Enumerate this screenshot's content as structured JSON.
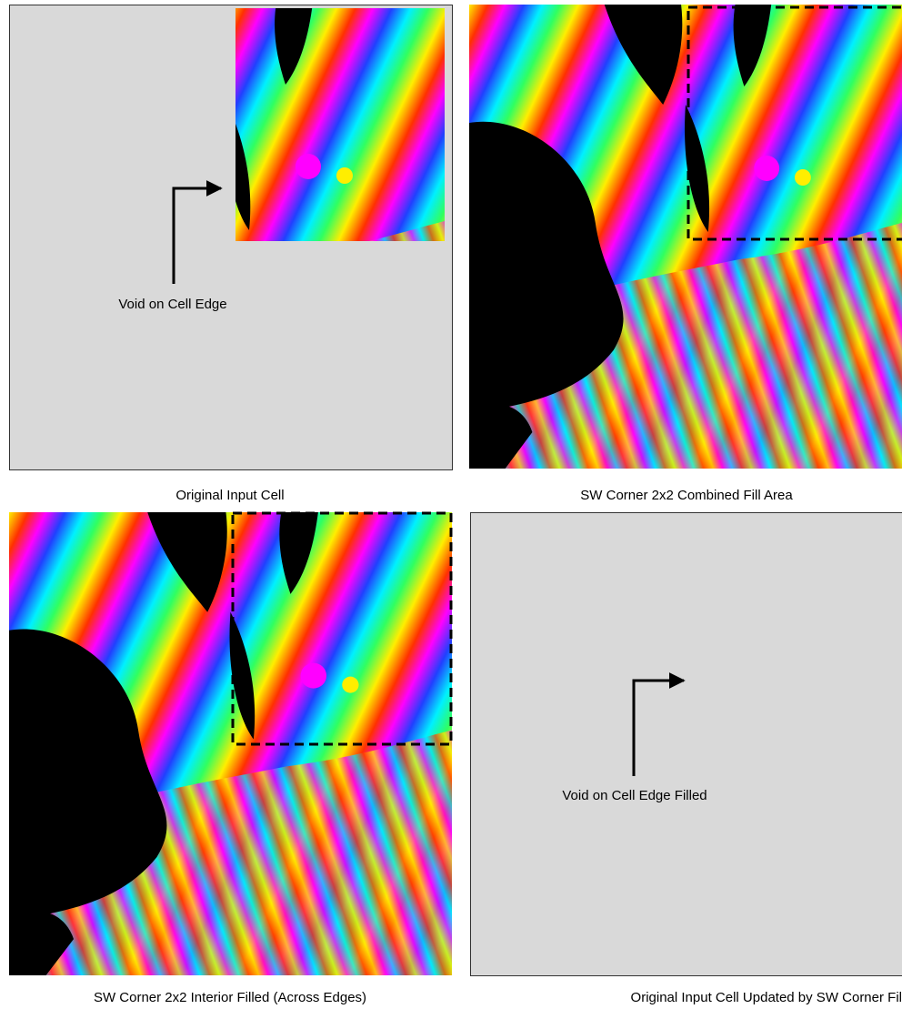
{
  "panels": [
    {
      "caption": "Original Input Cell",
      "annotation": "Void on Cell Edge"
    },
    {
      "caption": "SW Corner 2x2 Combined Fill Area"
    },
    {
      "caption": "SW Corner 2x2 Interior Filled (Across Edges)"
    },
    {
      "caption": "Original Input Cell Updated by SW Corner Fil",
      "annotation": "Void on Cell Edge Filled"
    }
  ]
}
